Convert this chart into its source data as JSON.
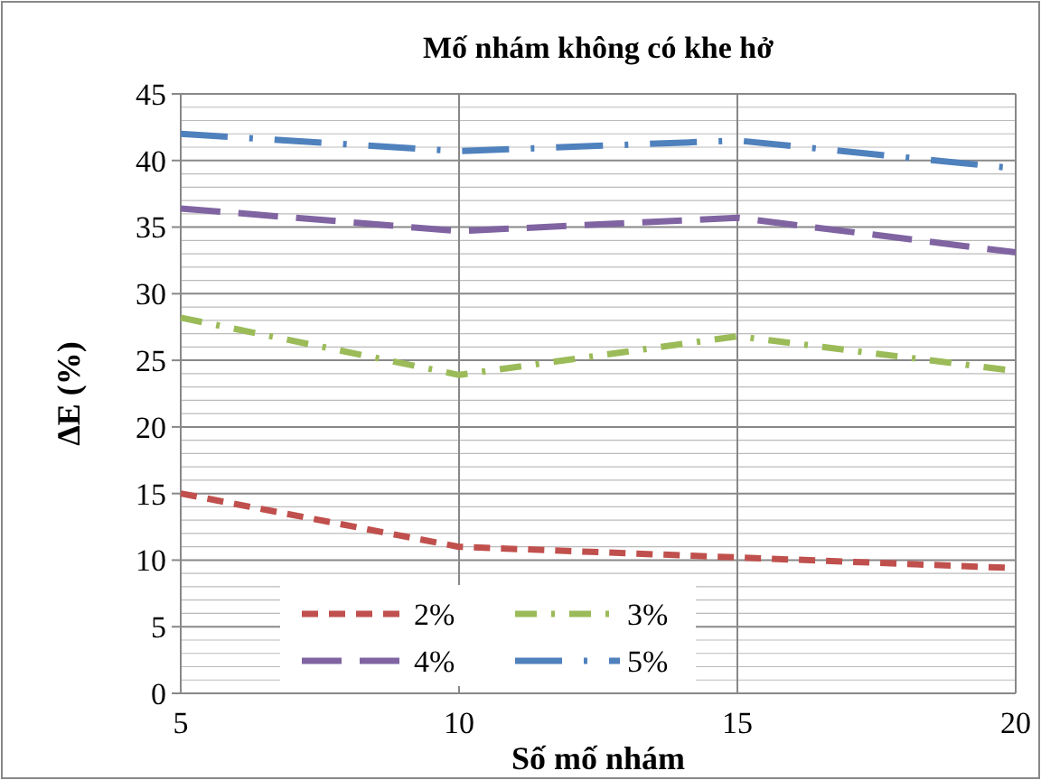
{
  "chart_data": {
    "type": "line",
    "title": "Mố nhám không có khe hở",
    "xlabel": "Số mố nhám",
    "ylabel": "ΔE (%)",
    "x": [
      5,
      10,
      15,
      20
    ],
    "xlim": [
      5,
      20
    ],
    "xticks": [
      5,
      10,
      15,
      20
    ],
    "ylim": [
      0,
      45
    ],
    "yticks": [
      0,
      {
        "value": 1,
        "label": null
      },
      {
        "value": 2,
        "label": null
      },
      {
        "value": 3,
        "label": null
      },
      {
        "value": 4,
        "label": null
      },
      5,
      {
        "value": 6,
        "label": null
      },
      {
        "value": 7,
        "label": null
      },
      {
        "value": 8,
        "label": null
      },
      {
        "value": 9,
        "label": null
      },
      10,
      {
        "value": 11,
        "label": null
      },
      {
        "value": 12,
        "label": null
      },
      {
        "value": 13,
        "label": null
      },
      {
        "value": 14,
        "label": null
      },
      15,
      {
        "value": 16,
        "label": null
      },
      {
        "value": 17,
        "label": null
      },
      {
        "value": 18,
        "label": null
      },
      {
        "value": 19,
        "label": null
      },
      20,
      {
        "value": 21,
        "label": null
      },
      {
        "value": 22,
        "label": null
      },
      {
        "value": 23,
        "label": null
      },
      {
        "value": 24,
        "label": null
      },
      25,
      {
        "value": 26,
        "label": null
      },
      {
        "value": 27,
        "label": null
      },
      {
        "value": 28,
        "label": null
      },
      {
        "value": 29,
        "label": null
      },
      30,
      {
        "value": 31,
        "label": null
      },
      {
        "value": 32,
        "label": null
      },
      {
        "value": 33,
        "label": null
      },
      {
        "value": 34,
        "label": null
      },
      35,
      {
        "value": 36,
        "label": null
      },
      {
        "value": 37,
        "label": null
      },
      {
        "value": 38,
        "label": null
      },
      {
        "value": 39,
        "label": null
      },
      40,
      {
        "value": 41,
        "label": null
      },
      {
        "value": 42,
        "label": null
      },
      {
        "value": 43,
        "label": null
      },
      {
        "value": 44,
        "label": null
      },
      45
    ],
    "grid": true,
    "legend": "bottom",
    "marker": "none",
    "series": [
      {
        "name": "2%",
        "color": "#c0504d",
        "line_style": "dashed",
        "values": [
          15,
          11,
          10.2,
          9.4
        ]
      },
      {
        "name": "3%",
        "color": "#9bbb59",
        "line_style": "dashdot",
        "values": [
          28.2,
          23.9,
          26.8,
          24.2
        ]
      },
      {
        "name": "4%",
        "color": "#8064a2",
        "line_style": "longdash",
        "values": [
          36.4,
          34.7,
          35.7,
          33.1
        ]
      },
      {
        "name": "5%",
        "color": "#4f81bd",
        "line_style": "longdashdot",
        "values": [
          42,
          40.7,
          41.5,
          39.4
        ]
      }
    ]
  }
}
